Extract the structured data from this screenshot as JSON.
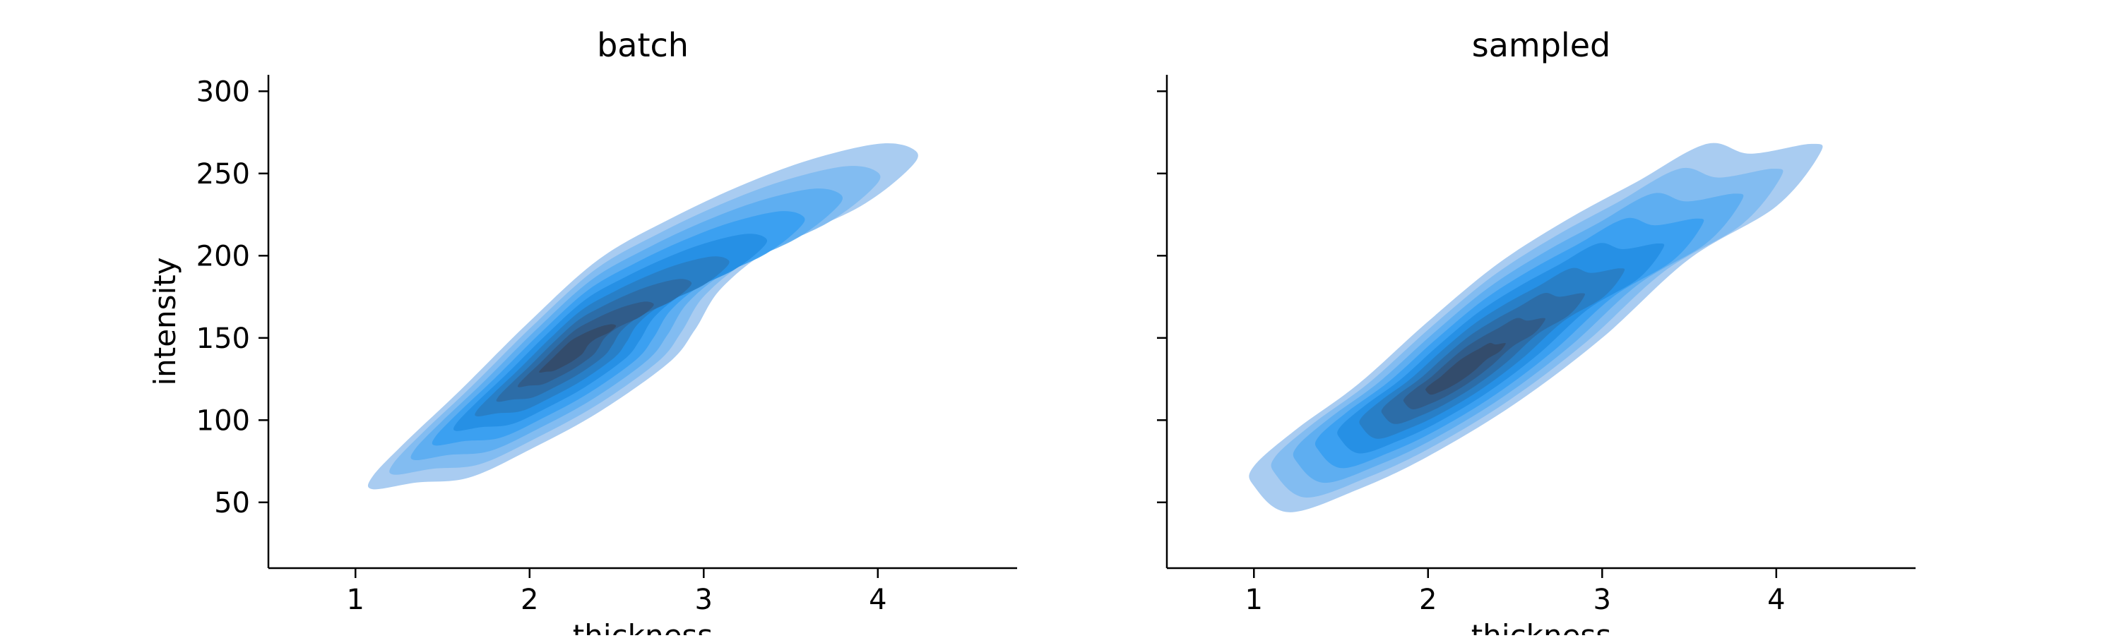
{
  "chart_data": [
    {
      "type": "kde_contour",
      "title": "batch",
      "xlabel": "thickness",
      "ylabel": "intensity",
      "xlim": [
        0.5,
        4.8
      ],
      "ylim": [
        10,
        310
      ],
      "xticks": [
        1,
        2,
        3,
        4
      ],
      "yticks": [
        50,
        100,
        150,
        200,
        250,
        300
      ],
      "grid": false,
      "fill_color": "#1f8ff0",
      "contour_levels": 9,
      "density_ridge": [
        [
          1.1,
          62
        ],
        [
          1.5,
          85
        ],
        [
          2.0,
          120
        ],
        [
          2.5,
          158
        ],
        [
          3.0,
          200
        ],
        [
          3.5,
          230
        ],
        [
          4.0,
          250
        ],
        [
          4.2,
          262
        ]
      ],
      "outer_boundary": [
        [
          1.1,
          58
        ],
        [
          1.35,
          62
        ],
        [
          1.65,
          65
        ],
        [
          2.0,
          82
        ],
        [
          2.4,
          105
        ],
        [
          2.8,
          135
        ],
        [
          2.95,
          155
        ],
        [
          3.1,
          180
        ],
        [
          3.4,
          205
        ],
        [
          3.9,
          230
        ],
        [
          4.2,
          255
        ],
        [
          4.2,
          265
        ],
        [
          4.0,
          268
        ],
        [
          3.6,
          258
        ],
        [
          3.2,
          242
        ],
        [
          2.8,
          222
        ],
        [
          2.4,
          198
        ],
        [
          2.0,
          160
        ],
        [
          1.6,
          118
        ],
        [
          1.3,
          88
        ],
        [
          1.1,
          66
        ]
      ],
      "peak_region": [
        [
          1.85,
          110
        ],
        [
          2.1,
          118
        ],
        [
          2.45,
          140
        ],
        [
          2.6,
          168
        ],
        [
          2.45,
          172
        ],
        [
          2.15,
          150
        ],
        [
          1.9,
          125
        ]
      ]
    },
    {
      "type": "kde_contour",
      "title": "sampled",
      "xlabel": "thickness",
      "ylabel": "",
      "xlim": [
        0.5,
        4.8
      ],
      "ylim": [
        10,
        310
      ],
      "xticks": [
        1,
        2,
        3,
        4
      ],
      "yticks": [
        50,
        100,
        150,
        200,
        250,
        300
      ],
      "grid": false,
      "fill_color": "#1f8ff0",
      "contour_levels": 9,
      "density_ridge": [
        [
          1.05,
          55
        ],
        [
          1.5,
          82
        ],
        [
          2.0,
          115
        ],
        [
          2.5,
          152
        ],
        [
          3.0,
          190
        ],
        [
          3.5,
          225
        ],
        [
          4.0,
          252
        ],
        [
          4.25,
          266
        ]
      ],
      "outer_boundary": [
        [
          1.0,
          60
        ],
        [
          1.2,
          44
        ],
        [
          1.6,
          58
        ],
        [
          2.0,
          78
        ],
        [
          2.5,
          110
        ],
        [
          3.0,
          150
        ],
        [
          3.5,
          198
        ],
        [
          4.0,
          230
        ],
        [
          4.25,
          262
        ],
        [
          4.2,
          268
        ],
        [
          3.85,
          262
        ],
        [
          3.6,
          268
        ],
        [
          3.2,
          245
        ],
        [
          2.8,
          222
        ],
        [
          2.4,
          195
        ],
        [
          2.0,
          160
        ],
        [
          1.6,
          122
        ],
        [
          1.25,
          95
        ],
        [
          1.0,
          72
        ]
      ],
      "peak_region": [
        [
          1.65,
          100
        ],
        [
          2.1,
          110
        ],
        [
          2.5,
          135
        ],
        [
          2.75,
          160
        ],
        [
          2.4,
          150
        ],
        [
          1.95,
          125
        ],
        [
          1.7,
          110
        ]
      ]
    }
  ]
}
